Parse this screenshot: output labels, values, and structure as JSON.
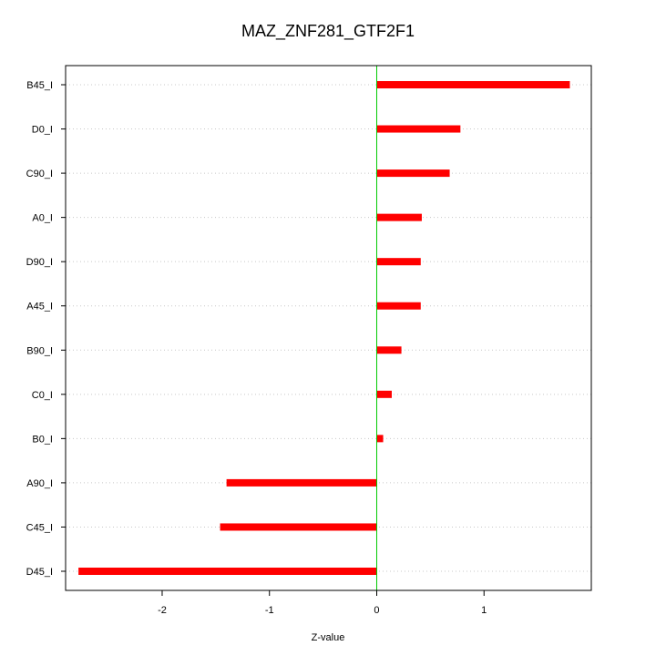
{
  "chart_data": {
    "type": "bar",
    "orientation": "horizontal",
    "title": "MAZ_ZNF281_GTF2F1",
    "xlabel": "Z-value",
    "ylabel": "",
    "xlim": [
      -2.9,
      2.0
    ],
    "xticks": [
      -2,
      -1,
      0,
      1
    ],
    "reference_line": 0,
    "grid": "horizontal dotted",
    "bar_color": "#ff0000",
    "reference_line_color": "#00cc00",
    "categories": [
      "B45_I",
      "D0_I",
      "C90_I",
      "A0_I",
      "D90_I",
      "A45_I",
      "B90_I",
      "C0_I",
      "B0_I",
      "A90_I",
      "C45_I",
      "D45_I"
    ],
    "values": [
      1.8,
      0.78,
      0.68,
      0.42,
      0.41,
      0.41,
      0.23,
      0.14,
      0.06,
      -1.4,
      -1.46,
      -2.78
    ]
  }
}
